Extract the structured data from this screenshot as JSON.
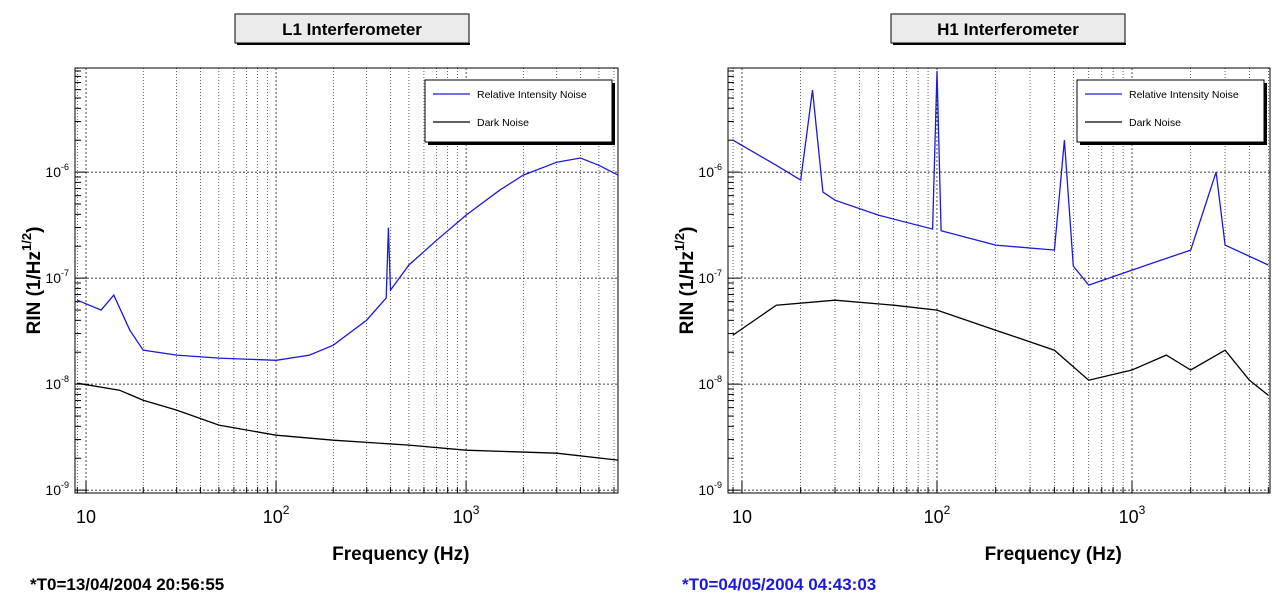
{
  "chart_data": [
    {
      "type": "line",
      "title": "L1 Interferometer",
      "x_label": "Frequency (Hz)",
      "y_label": "RIN (1/Hz",
      "y_label_exponent": "1/2",
      "y_label_suffix": ")",
      "footnote": "*T0=13/04/2004 20:56:55",
      "footnote_color": "#000000",
      "log_x": true,
      "log_y": true,
      "grid": true,
      "legend": "upper right",
      "xlim": [
        8.75,
        6300
      ],
      "ylim": [
        9.4e-10,
        9.6e-06
      ],
      "xticks": [
        10,
        {
          "value": 100,
          "label": "10",
          "exponent": "2"
        },
        {
          "value": 1000,
          "label": "10",
          "exponent": "3"
        }
      ],
      "yticks": [
        {
          "value": 1e-06,
          "label": "10",
          "exponent": "-6"
        },
        {
          "value": 1e-07,
          "label": "10",
          "exponent": "-7"
        },
        {
          "value": 1e-08,
          "label": "10",
          "exponent": "-8"
        },
        {
          "value": 1e-09,
          "label": "10",
          "exponent": "-9"
        }
      ],
      "series": [
        {
          "name": "Relative Intensity Noise",
          "color": "#1a1adc",
          "x": [
            9,
            12,
            14,
            17,
            20,
            30,
            50,
            100,
            150,
            200,
            300,
            380,
            390,
            400,
            500,
            700,
            1000,
            1500,
            2000,
            3000,
            4000,
            5000,
            6300
          ],
          "values": [
            6.19e-08,
            4.99e-08,
            6.92e-08,
            3.23e-08,
            2.09e-08,
            1.88e-08,
            1.76e-08,
            1.68e-08,
            1.88e-08,
            2.33e-08,
            4.02e-08,
            6.5e-08,
            3e-07,
            7.71e-08,
            1.33e-07,
            2.28e-07,
            3.93e-07,
            6.76e-07,
            9.37e-07,
            1.24e-06,
            1.36e-06,
            1.16e-06,
            9.37e-07
          ]
        },
        {
          "name": "Dark Noise",
          "color": "#000000",
          "x": [
            9,
            15,
            20,
            30,
            50,
            100,
            200,
            500,
            1000,
            3000,
            6300
          ],
          "values": [
            1.02e-08,
            8.77e-09,
            7.06e-09,
            5.69e-09,
            4.11e-09,
            3.3e-09,
            2.96e-09,
            2.66e-09,
            2.38e-09,
            2.23e-09,
            1.92e-09
          ]
        }
      ]
    },
    {
      "type": "line",
      "title": "H1 Interferometer",
      "x_label": "Frequency (Hz)",
      "y_label": "RIN (1/Hz",
      "y_label_exponent": "1/2",
      "y_label_suffix": ")",
      "footnote": "*T0=04/05/2004 04:43:03",
      "footnote_color": "#1a1adc",
      "log_x": true,
      "log_y": true,
      "grid": true,
      "legend": "upper right",
      "xlim": [
        8.48,
        5100
      ],
      "ylim": [
        9.4e-10,
        9.6e-06
      ],
      "xticks": [
        10,
        {
          "value": 100,
          "label": "10",
          "exponent": "2"
        },
        {
          "value": 1000,
          "label": "10",
          "exponent": "3"
        }
      ],
      "yticks": [
        {
          "value": 1e-06,
          "label": "10",
          "exponent": "-6"
        },
        {
          "value": 1e-07,
          "label": "10",
          "exponent": "-7"
        },
        {
          "value": 1e-08,
          "label": "10",
          "exponent": "-8"
        },
        {
          "value": 1e-09,
          "label": "10",
          "exponent": "-9"
        }
      ],
      "series": [
        {
          "name": "Relative Intensity Noise",
          "color": "#1a1adc",
          "x": [
            9,
            15,
            20,
            23,
            26,
            30,
            50,
            95,
            100,
            105,
            200,
            400,
            450,
            500,
            600,
            1000,
            2000,
            2700,
            3000,
            5000
          ],
          "values": [
            2e-06,
            1.16e-06,
            8.41e-07,
            5.94e-06,
            6.5e-07,
            5.44e-07,
            3.93e-07,
            2.9e-07,
            9e-06,
            2.8e-07,
            2.05e-07,
            1.84e-07,
            2e-06,
            1.3e-07,
            8.59e-08,
            1.19e-07,
            1.84e-07,
            1e-06,
            2.05e-07,
            1.33e-07
          ]
        },
        {
          "name": "Dark Noise",
          "color": "#000000",
          "x": [
            9,
            15,
            30,
            60,
            100,
            200,
            400,
            600,
            1000,
            1500,
            2000,
            3000,
            4000,
            5000
          ],
          "values": [
            2.9e-08,
            5.56e-08,
            6.19e-08,
            5.56e-08,
            4.99e-08,
            3.23e-08,
            2.09e-08,
            1.09e-08,
            1.36e-08,
            1.88e-08,
            1.36e-08,
            2.09e-08,
            1.09e-08,
            7.87e-09
          ]
        }
      ]
    }
  ]
}
